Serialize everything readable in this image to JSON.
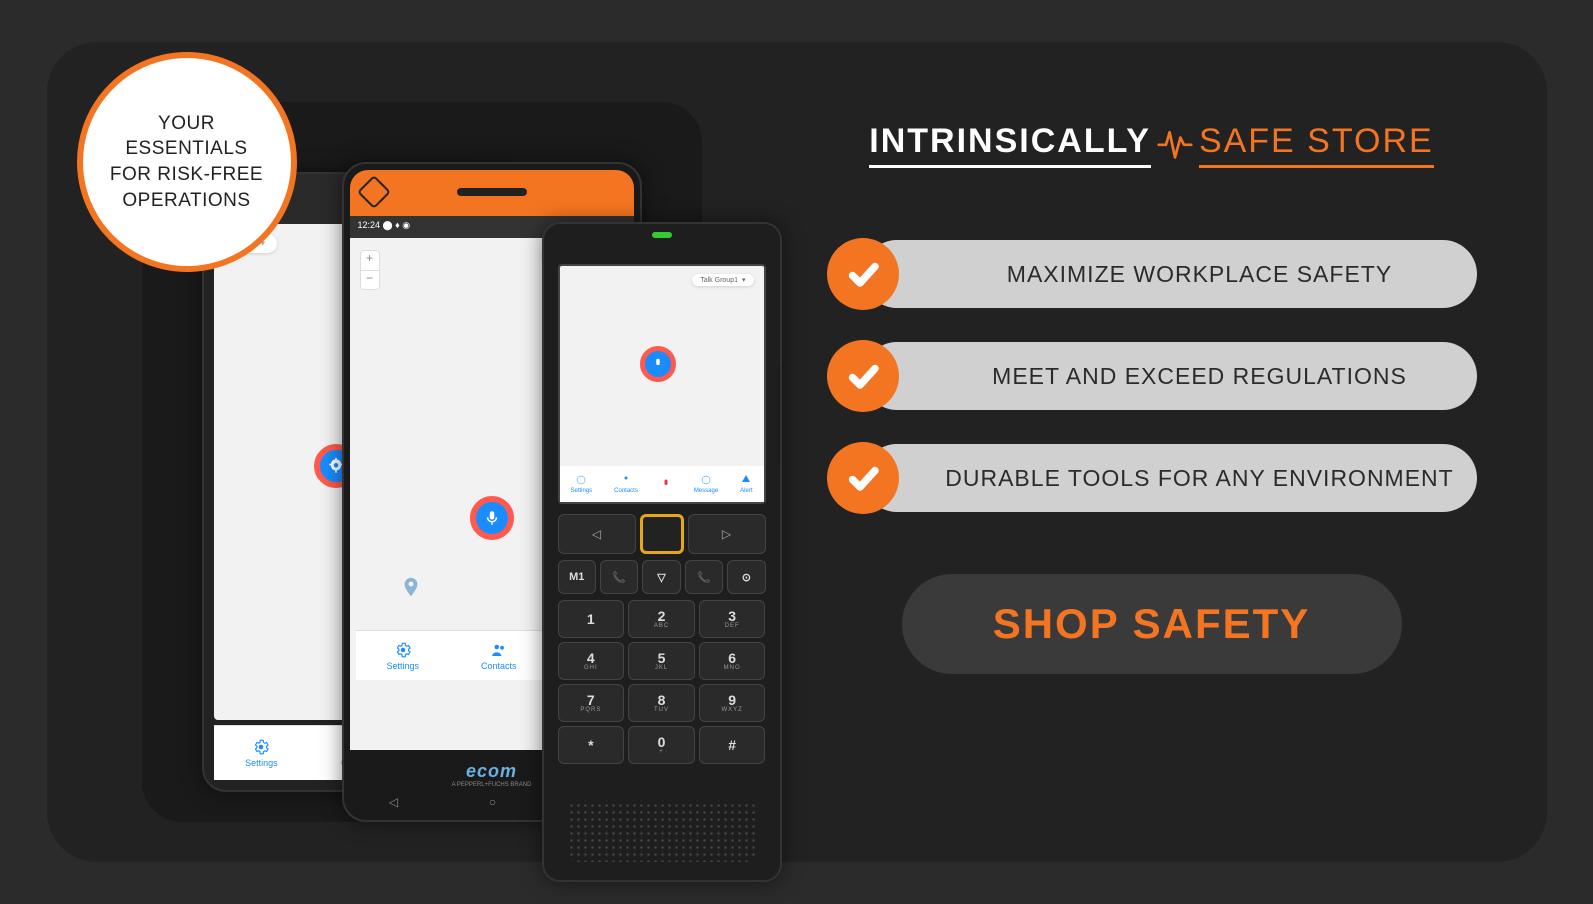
{
  "colors": {
    "accent": "#f47521",
    "bg": "#2b2b2b",
    "panel": "#222222",
    "devicesBox": "#1a1a1a",
    "pill": "#d0d0d0",
    "cta_bg": "#3a3a3a"
  },
  "badge": {
    "line1": "YOUR",
    "line2": "ESSENTIALS",
    "line3": "FOR RISK-FREE",
    "line4": "OPERATIONS"
  },
  "logo": {
    "word1": "INTRINSICALLY",
    "word2": "SAFE STORE"
  },
  "features": [
    "MAXIMIZE WORKPLACE SAFETY",
    "MEET AND EXCEED REGULATIONS",
    "DURABLE TOOLS FOR ANY ENVIRONMENT"
  ],
  "cta": "SHOP SAFETY",
  "devices": {
    "talkGroup": "Talk Group1",
    "brand": "ecom",
    "brandSub": "A PEPPERL+FUCHS BRAND",
    "status": "12:24 ⬤ ♦ ◉",
    "tabs": {
      "settings": "Settings",
      "contacts": "Contacts",
      "mic": "",
      "message": "Message",
      "alert": "Alert"
    },
    "m1": "M1",
    "keypad": [
      {
        "n": "1",
        "l": ""
      },
      {
        "n": "2",
        "l": "ABC"
      },
      {
        "n": "3",
        "l": "DEF"
      },
      {
        "n": "4",
        "l": "GHI"
      },
      {
        "n": "5",
        "l": "JKL"
      },
      {
        "n": "6",
        "l": "MNO"
      },
      {
        "n": "7",
        "l": "PQRS"
      },
      {
        "n": "8",
        "l": "TUV"
      },
      {
        "n": "9",
        "l": "WXYZ"
      },
      {
        "n": "*",
        "l": ""
      },
      {
        "n": "0",
        "l": "+"
      },
      {
        "n": "#",
        "l": ""
      }
    ]
  }
}
